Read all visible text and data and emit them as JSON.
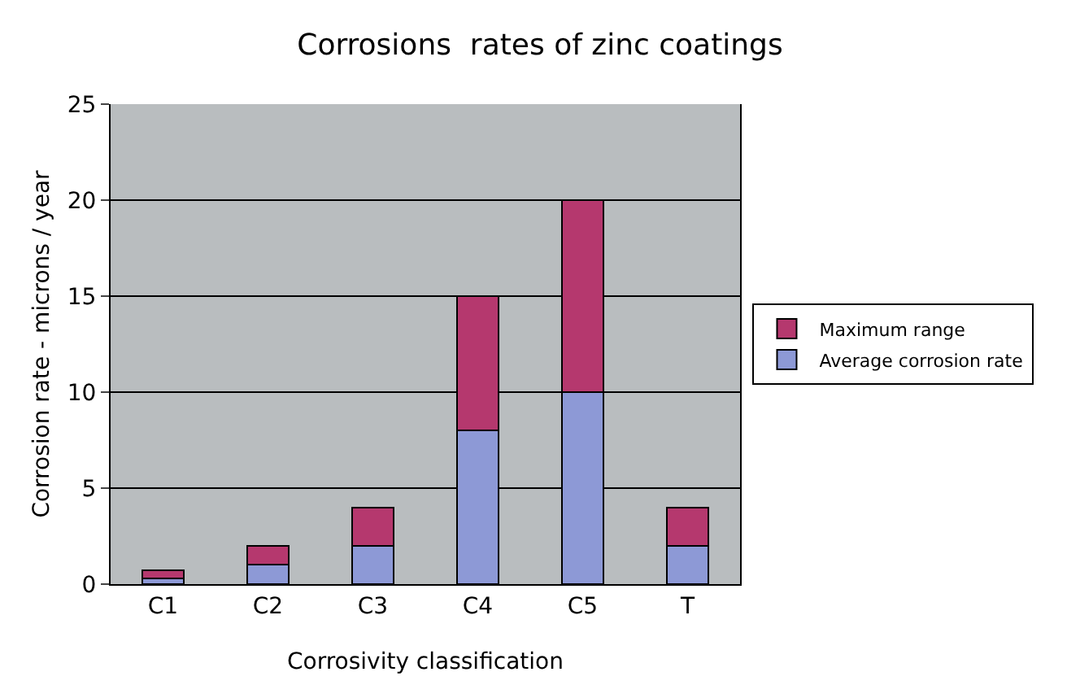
{
  "chart_data": {
    "type": "bar",
    "title": "Corrosions  rates of zinc coatings",
    "xlabel": "Corrosivity classification",
    "ylabel": "Corrosion rate - microns / year",
    "categories": [
      "C1",
      "C2",
      "C3",
      "C4",
      "C5",
      "T"
    ],
    "stacked": true,
    "series": [
      {
        "name": "Average corrosion rate",
        "color": "#8d99d6",
        "values": [
          0.3,
          1,
          2,
          8,
          10,
          2
        ]
      },
      {
        "name": "Maximum range",
        "color": "#b5386e",
        "values": [
          0.4,
          1,
          2,
          7,
          10,
          2
        ]
      }
    ],
    "ylim": [
      0,
      25
    ],
    "yticks": [
      0,
      5,
      10,
      15,
      20,
      25
    ],
    "grid": "y",
    "legend": "right"
  }
}
